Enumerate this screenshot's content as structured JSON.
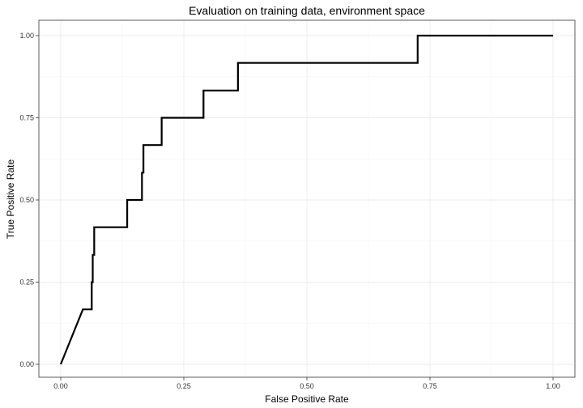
{
  "chart_data": {
    "type": "line",
    "title": "Evaluation on training data, environment space",
    "xlabel": "False Positive Rate",
    "ylabel": "True Positive Rate",
    "xlim": [
      0,
      1
    ],
    "ylim": [
      0,
      1
    ],
    "x_ticks": [
      "0.00",
      "0.25",
      "0.50",
      "0.75",
      "1.00"
    ],
    "y_ticks": [
      "0.00",
      "0.25",
      "0.50",
      "0.75",
      "1.00"
    ],
    "grid": true,
    "legend": "none",
    "line_color": "#000000",
    "series": [
      {
        "x": [
          0.0,
          0.045,
          0.063,
          0.063,
          0.065,
          0.065,
          0.068,
          0.068,
          0.135,
          0.135,
          0.165,
          0.165,
          0.168,
          0.168,
          0.205,
          0.205,
          0.29,
          0.29,
          0.36,
          0.36,
          0.725,
          0.725,
          1.0
        ],
        "y": [
          0.0,
          0.167,
          0.167,
          0.25,
          0.25,
          0.333,
          0.333,
          0.417,
          0.417,
          0.5,
          0.5,
          0.583,
          0.583,
          0.667,
          0.667,
          0.75,
          0.75,
          0.833,
          0.833,
          0.917,
          0.917,
          1.0,
          1.0
        ]
      }
    ]
  }
}
